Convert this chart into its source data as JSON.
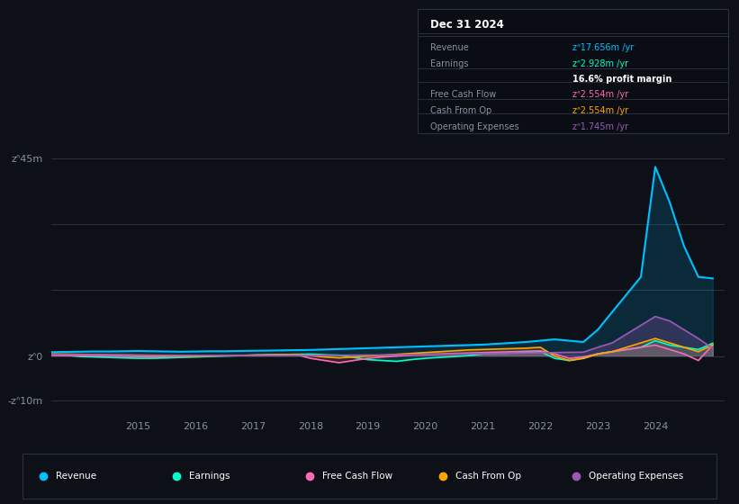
{
  "bg_color": "#0d1117",
  "plot_bg_color": "#0d1117",
  "grid_color": "#2a3040",
  "text_color": "#8892a0",
  "title_text_color": "#ffffff",
  "series_colors": {
    "Revenue": "#00bfff",
    "Earnings": "#00ffcc",
    "FreeCashFlow": "#ff69b4",
    "CashFromOp": "#ffa500",
    "OperatingExpenses": "#9b59b6"
  },
  "legend_items": [
    {
      "label": "Revenue",
      "color": "#00bfff"
    },
    {
      "label": "Earnings",
      "color": "#00ffcc"
    },
    {
      "label": "Free Cash Flow",
      "color": "#ff69b4"
    },
    {
      "label": "Cash From Op",
      "color": "#ffa500"
    },
    {
      "label": "Operating Expenses",
      "color": "#9b59b6"
    }
  ],
  "tooltip_title": "Dec 31 2024",
  "xdata": [
    2013.0,
    2013.25,
    2013.5,
    2013.75,
    2014.0,
    2014.25,
    2014.5,
    2014.75,
    2015.0,
    2015.25,
    2015.5,
    2015.75,
    2016.0,
    2016.25,
    2016.5,
    2016.75,
    2017.0,
    2017.25,
    2017.5,
    2017.75,
    2018.0,
    2018.25,
    2018.5,
    2018.75,
    2019.0,
    2019.25,
    2019.5,
    2019.75,
    2020.0,
    2020.25,
    2020.5,
    2020.75,
    2021.0,
    2021.25,
    2021.5,
    2021.75,
    2022.0,
    2022.25,
    2022.5,
    2022.75,
    2023.0,
    2023.25,
    2023.5,
    2023.75,
    2024.0,
    2024.25,
    2024.5,
    2024.75,
    2025.0
  ],
  "Revenue": [
    0.8,
    0.85,
    0.9,
    0.95,
    1.0,
    1.05,
    1.05,
    1.1,
    1.15,
    1.1,
    1.05,
    1.0,
    1.05,
    1.1,
    1.1,
    1.15,
    1.2,
    1.25,
    1.3,
    1.35,
    1.4,
    1.5,
    1.6,
    1.7,
    1.8,
    1.9,
    2.0,
    2.1,
    2.2,
    2.3,
    2.4,
    2.5,
    2.6,
    2.8,
    3.0,
    3.2,
    3.5,
    3.8,
    3.5,
    3.2,
    6.0,
    10.0,
    14.0,
    18.0,
    43.0,
    35.0,
    25.0,
    18.0,
    17.656
  ],
  "Earnings": [
    0.5,
    0.4,
    0.3,
    0.2,
    -0.1,
    -0.2,
    -0.3,
    -0.4,
    -0.5,
    -0.5,
    -0.4,
    -0.3,
    -0.2,
    -0.1,
    0.0,
    0.1,
    0.2,
    0.3,
    0.35,
    0.4,
    0.45,
    0.3,
    0.2,
    -0.3,
    -0.8,
    -1.0,
    -1.2,
    -0.8,
    -0.5,
    -0.3,
    -0.1,
    0.1,
    0.5,
    0.6,
    0.7,
    0.8,
    1.0,
    -0.5,
    -1.0,
    -0.5,
    0.5,
    1.0,
    1.5,
    2.0,
    3.5,
    2.5,
    2.0,
    1.5,
    2.928
  ],
  "FreeCashFlow": [
    0.3,
    0.25,
    0.2,
    0.15,
    0.1,
    0.05,
    0.0,
    -0.05,
    -0.1,
    -0.15,
    -0.1,
    -0.05,
    0.0,
    0.05,
    0.1,
    0.15,
    0.2,
    0.25,
    0.3,
    0.35,
    -0.5,
    -1.0,
    -1.5,
    -1.0,
    -0.5,
    -0.2,
    0.0,
    0.2,
    0.4,
    0.5,
    0.6,
    0.7,
    0.8,
    0.9,
    1.0,
    1.1,
    1.2,
    0.5,
    -0.5,
    -0.2,
    0.5,
    1.0,
    1.5,
    2.0,
    2.5,
    1.5,
    0.5,
    -1.0,
    2.554
  ],
  "CashFromOp": [
    0.6,
    0.55,
    0.5,
    0.45,
    0.4,
    0.35,
    0.3,
    0.25,
    0.2,
    0.15,
    0.1,
    0.05,
    0.0,
    0.05,
    0.1,
    0.15,
    0.2,
    0.25,
    0.3,
    0.35,
    0.1,
    -0.2,
    -0.4,
    -0.2,
    0.0,
    0.2,
    0.4,
    0.6,
    0.8,
    1.0,
    1.2,
    1.4,
    1.5,
    1.6,
    1.7,
    1.8,
    2.0,
    0.0,
    -1.0,
    -0.5,
    0.5,
    1.0,
    2.0,
    3.0,
    4.0,
    3.0,
    2.0,
    1.0,
    2.554
  ],
  "OperatingExpenses": [
    0.4,
    0.38,
    0.36,
    0.34,
    0.32,
    0.3,
    0.28,
    0.26,
    0.24,
    0.22,
    0.2,
    0.18,
    0.16,
    0.14,
    0.12,
    0.1,
    0.08,
    0.1,
    0.12,
    0.14,
    0.16,
    0.18,
    0.2,
    0.22,
    0.24,
    0.26,
    0.28,
    0.3,
    0.35,
    0.4,
    0.45,
    0.5,
    0.55,
    0.6,
    0.65,
    0.7,
    0.75,
    0.8,
    0.85,
    0.9,
    2.0,
    3.0,
    5.0,
    7.0,
    9.0,
    8.0,
    6.0,
    4.0,
    1.745
  ]
}
